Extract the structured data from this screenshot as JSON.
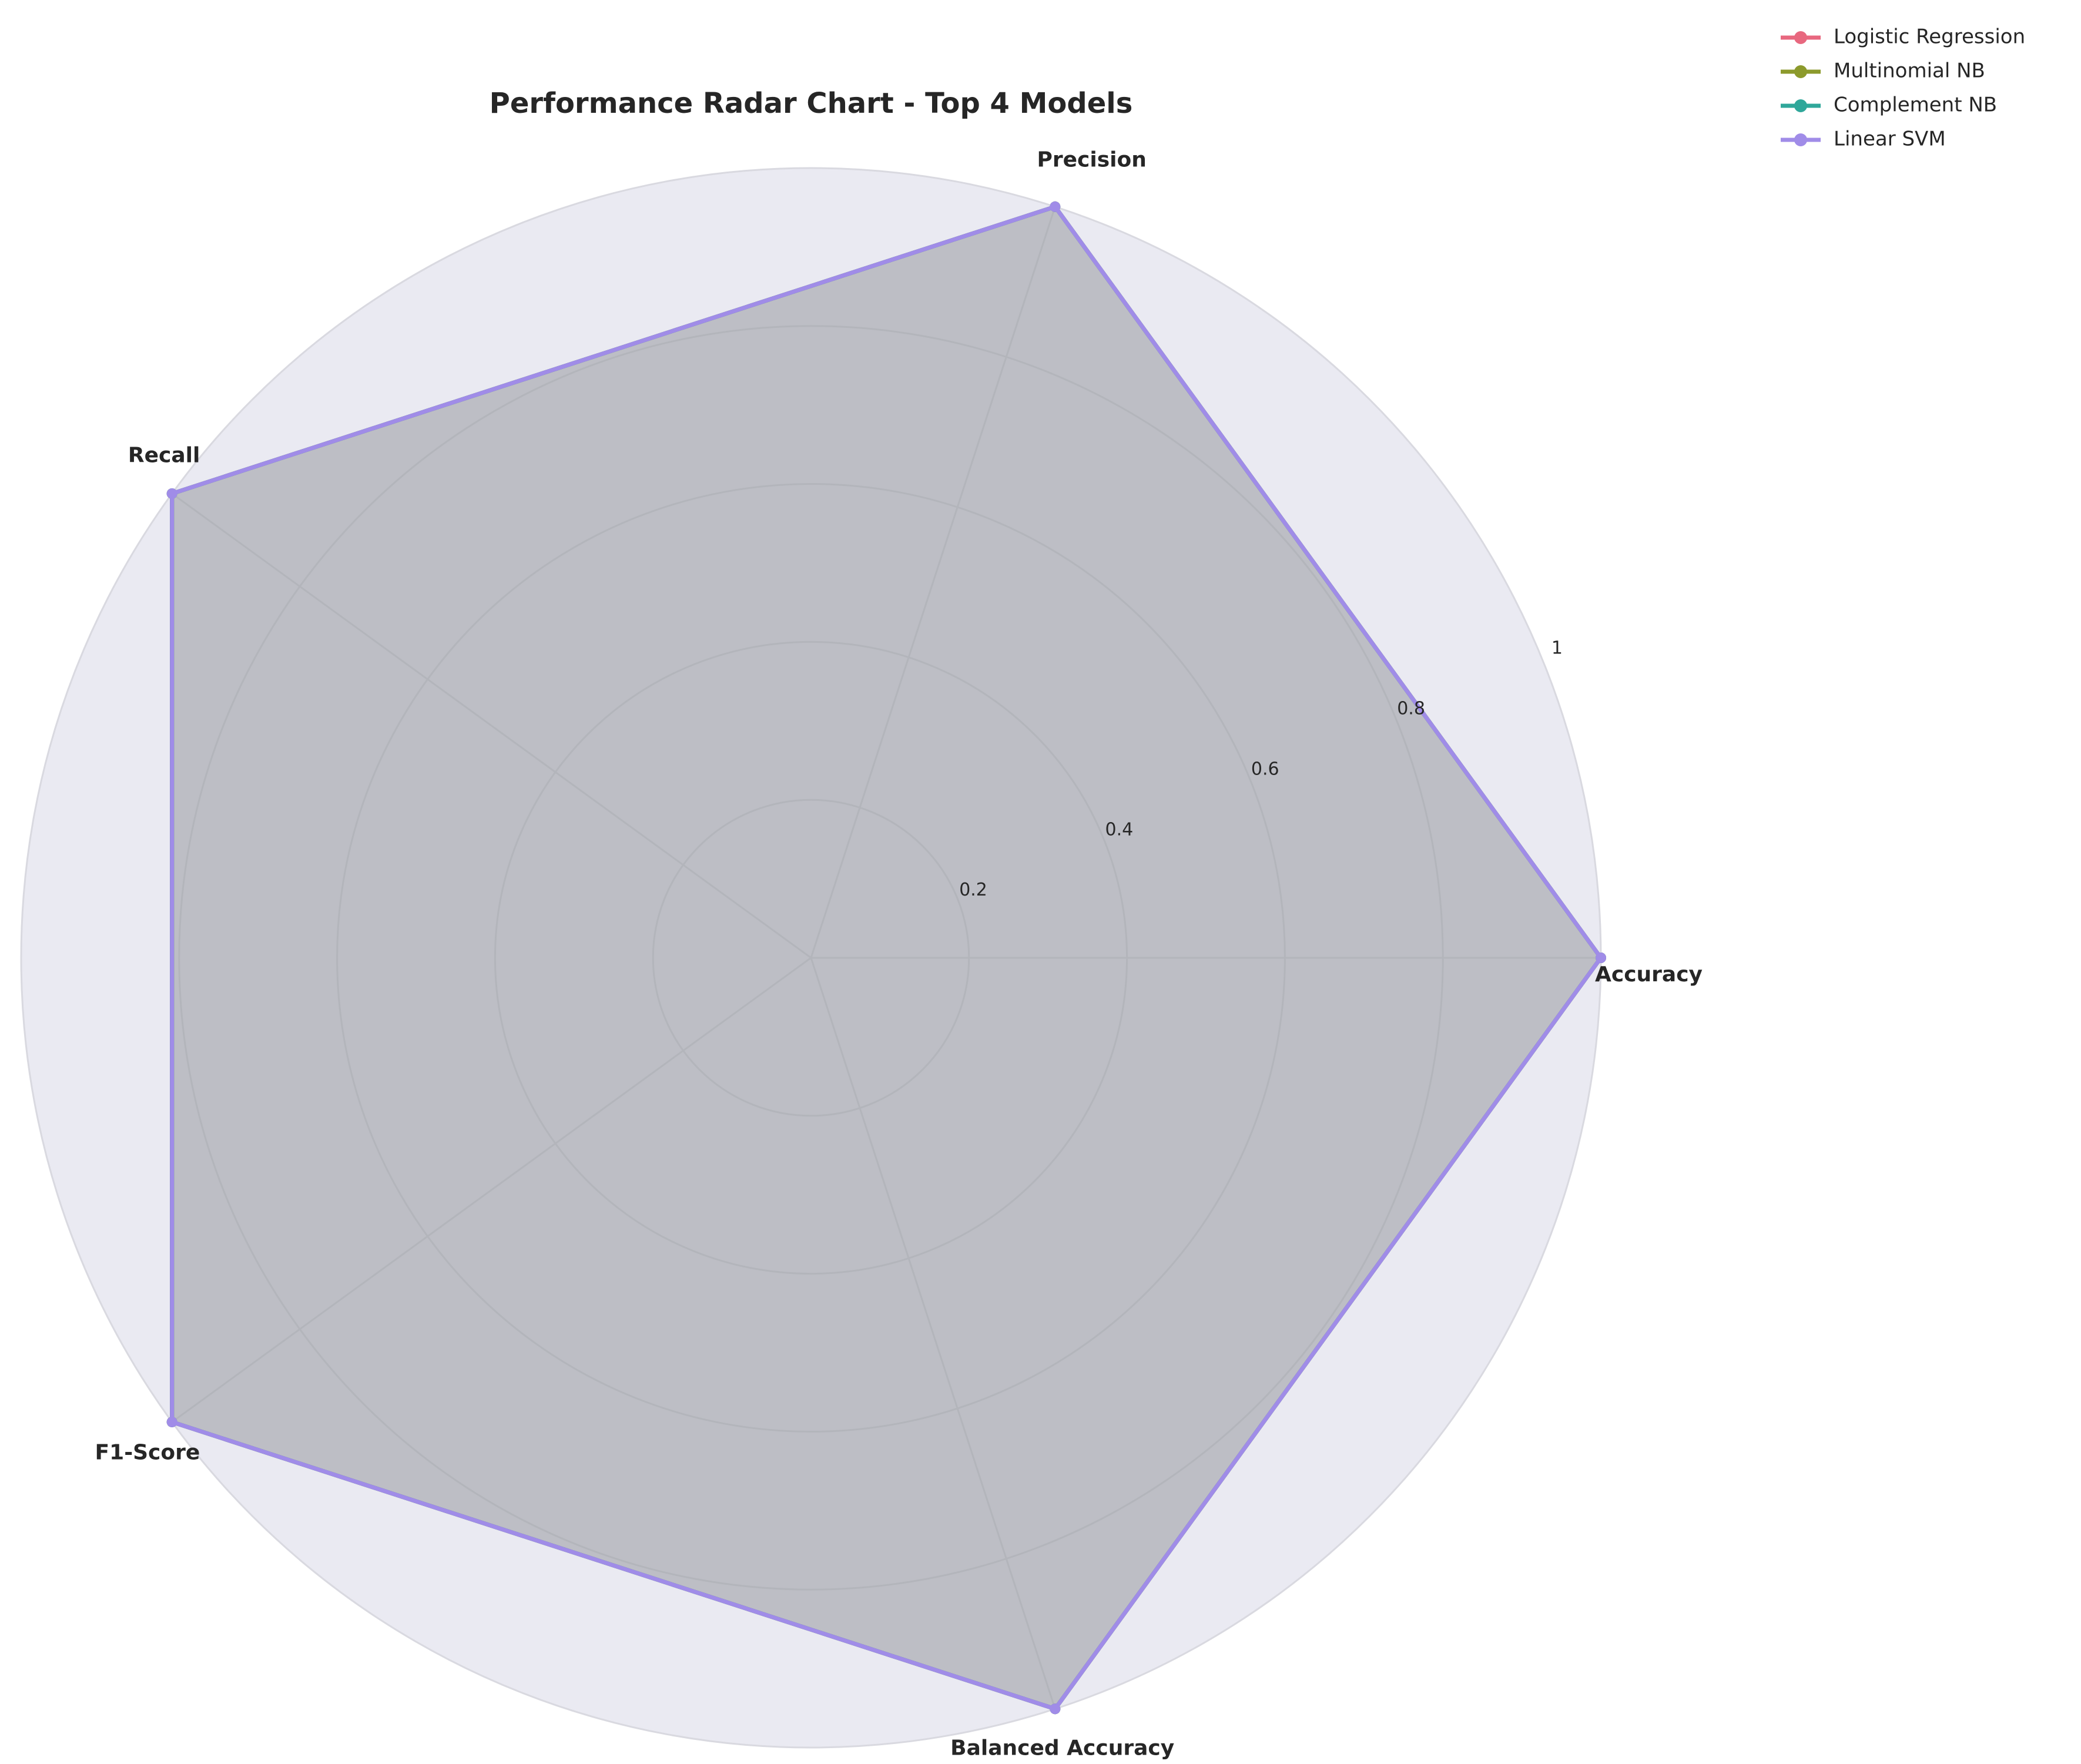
{
  "chart_data": {
    "type": "radar",
    "title": "Performance Radar Chart - Top 4 Models",
    "categories": [
      "Accuracy",
      "Precision",
      "Recall",
      "F1-Score",
      "Balanced Accuracy"
    ],
    "series": [
      {
        "name": "Logistic Regression",
        "color": "#e8687f",
        "values": [
          1.0,
          1.0,
          1.0,
          1.0,
          1.0
        ]
      },
      {
        "name": "Multinomial NB",
        "color": "#8c9a2c",
        "values": [
          1.0,
          1.0,
          1.0,
          1.0,
          1.0
        ]
      },
      {
        "name": "Complement NB",
        "color": "#2fa79a",
        "values": [
          1.0,
          1.0,
          1.0,
          1.0,
          1.0
        ]
      },
      {
        "name": "Linear SVM",
        "color": "#a08ce8",
        "values": [
          1.0,
          1.0,
          1.0,
          1.0,
          1.0
        ]
      }
    ],
    "ylim": [
      0,
      1
    ],
    "yticks": [
      0.2,
      0.4,
      0.6,
      0.8,
      1.0
    ],
    "grid": true
  }
}
